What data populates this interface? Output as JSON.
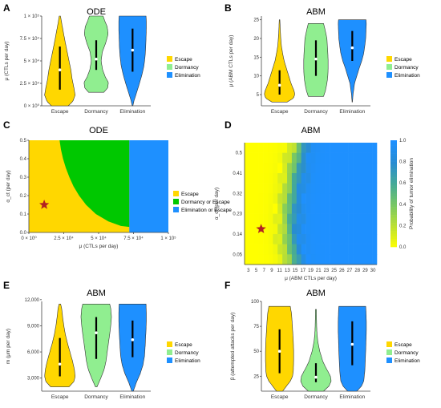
{
  "panel_letters": [
    "A",
    "B",
    "C",
    "D",
    "E",
    "F"
  ],
  "legend_violin": [
    "Escape",
    "Dormancy",
    "Elimination"
  ],
  "colors": {
    "escape": "#FFD700",
    "dormancy": "#90EE90",
    "elimination": "#1E90FF",
    "green_region": "#00C800",
    "star": "#B22222"
  },
  "chart_data": [
    {
      "id": "A",
      "type": "violin",
      "title": "ODE",
      "xlabel": "",
      "ylabel": "μ (CTLs per day)",
      "categories": [
        "Escape",
        "Dormancy",
        "Elimination"
      ],
      "ylim": [
        0,
        100000
      ],
      "yticks": [
        0,
        25000,
        50000,
        75000,
        100000
      ],
      "ytick_labels": [
        "0 × 10⁰",
        "2.5 × 10⁴",
        "5 × 10⁴",
        "7.5 × 10⁴",
        "1 × 10⁵"
      ],
      "series": [
        {
          "category": "Escape",
          "min": 0,
          "max": 100000,
          "q1": 18000,
          "median": 40000,
          "q3": 66000,
          "density": [
            [
              0,
              0.55
            ],
            [
              5000,
              0.85
            ],
            [
              12000,
              1.0
            ],
            [
              20000,
              0.92
            ],
            [
              30000,
              0.8
            ],
            [
              40000,
              0.72
            ],
            [
              50000,
              0.6
            ],
            [
              60000,
              0.48
            ],
            [
              70000,
              0.36
            ],
            [
              80000,
              0.25
            ],
            [
              90000,
              0.14
            ],
            [
              100000,
              0.04
            ]
          ]
        },
        {
          "category": "Dormancy",
          "min": 15000,
          "max": 100000,
          "q1": 40000,
          "median": 52000,
          "q3": 73000,
          "density": [
            [
              15000,
              0.5
            ],
            [
              20000,
              0.75
            ],
            [
              26000,
              0.8
            ],
            [
              32000,
              0.6
            ],
            [
              40000,
              0.42
            ],
            [
              50000,
              0.32
            ],
            [
              60000,
              0.4
            ],
            [
              70000,
              0.62
            ],
            [
              80000,
              0.78
            ],
            [
              88000,
              0.72
            ],
            [
              95000,
              0.55
            ],
            [
              100000,
              0.45
            ]
          ]
        },
        {
          "category": "Elimination",
          "min": 0,
          "max": 100000,
          "q1": 38000,
          "median": 62000,
          "q3": 86000,
          "density": [
            [
              0,
              0.02
            ],
            [
              6000,
              0.1
            ],
            [
              14000,
              0.25
            ],
            [
              25000,
              0.45
            ],
            [
              35000,
              0.62
            ],
            [
              45000,
              0.75
            ],
            [
              55000,
              0.82
            ],
            [
              65000,
              0.86
            ],
            [
              75000,
              0.88
            ],
            [
              85000,
              0.9
            ],
            [
              95000,
              0.9
            ],
            [
              100000,
              0.88
            ]
          ]
        }
      ]
    },
    {
      "id": "B",
      "type": "violin",
      "title": "ABM",
      "xlabel": "",
      "ylabel": "μ (ABM CTLs per day)",
      "categories": [
        "Escape",
        "Dormancy",
        "Elimination"
      ],
      "ylim": [
        2,
        26
      ],
      "yticks": [
        5,
        10,
        15,
        20,
        25
      ],
      "ytick_labels": [
        "5",
        "10",
        "15",
        "20",
        "25"
      ],
      "series": [
        {
          "category": "Escape",
          "min": 3,
          "max": 25,
          "q1": 5,
          "median": 7.5,
          "q3": 11.5,
          "density": [
            [
              3,
              0.5
            ],
            [
              4,
              0.9
            ],
            [
              5,
              1.0
            ],
            [
              6,
              0.95
            ],
            [
              7,
              0.85
            ],
            [
              8,
              0.75
            ],
            [
              10,
              0.6
            ],
            [
              12,
              0.45
            ],
            [
              14,
              0.3
            ],
            [
              16,
              0.2
            ],
            [
              18,
              0.12
            ],
            [
              20,
              0.08
            ],
            [
              22,
              0.05
            ],
            [
              25,
              0.02
            ]
          ]
        },
        {
          "category": "Dormancy",
          "min": 4.5,
          "max": 24,
          "q1": 10,
          "median": 14.5,
          "q3": 19.5,
          "density": [
            [
              4.5,
              0.5
            ],
            [
              6,
              0.62
            ],
            [
              8,
              0.72
            ],
            [
              10,
              0.78
            ],
            [
              12,
              0.8
            ],
            [
              14,
              0.8
            ],
            [
              16,
              0.78
            ],
            [
              18,
              0.75
            ],
            [
              20,
              0.72
            ],
            [
              22,
              0.62
            ],
            [
              24,
              0.5
            ]
          ]
        },
        {
          "category": "Elimination",
          "min": 3,
          "max": 25,
          "q1": 14,
          "median": 17.5,
          "q3": 22,
          "density": [
            [
              3,
              0.01
            ],
            [
              5,
              0.05
            ],
            [
              8,
              0.15
            ],
            [
              10,
              0.3
            ],
            [
              12,
              0.45
            ],
            [
              14,
              0.62
            ],
            [
              16,
              0.75
            ],
            [
              18,
              0.82
            ],
            [
              20,
              0.88
            ],
            [
              22,
              0.9
            ],
            [
              24,
              0.92
            ],
            [
              25,
              0.9
            ]
          ]
        }
      ]
    },
    {
      "id": "C",
      "type": "region",
      "title": "ODE",
      "xlabel": "μ (CTLs per day)",
      "ylabel": "α_ct (per day)",
      "xlim": [
        0,
        100000
      ],
      "ylim": [
        0,
        0.5
      ],
      "xticks": [
        0,
        25000,
        50000,
        75000,
        100000
      ],
      "xtick_labels": [
        "0 × 10⁰",
        "2.5 × 10⁴",
        "5 × 10⁴",
        "7.5 × 10⁴",
        "1 × 10⁵"
      ],
      "yticks": [
        0,
        0.1,
        0.2,
        0.3,
        0.4,
        0.5
      ],
      "ytick_labels": [
        "0.0",
        "0.1",
        "0.2",
        "0.3",
        "0.4",
        "0.5"
      ],
      "legend": [
        "Escape",
        "Dormancy or Escape",
        "Elimination or Escape"
      ],
      "elimination_boundary_x": 72000,
      "boundary": [
        [
          22000,
          0.5
        ],
        [
          23000,
          0.45
        ],
        [
          24500,
          0.4
        ],
        [
          26500,
          0.35
        ],
        [
          29000,
          0.3
        ],
        [
          32000,
          0.25
        ],
        [
          36000,
          0.2
        ],
        [
          41000,
          0.15
        ],
        [
          48000,
          0.1
        ],
        [
          57000,
          0.06
        ],
        [
          66000,
          0.035
        ],
        [
          72000,
          0.03
        ]
      ],
      "star": {
        "x": 11000,
        "y": 0.15
      }
    },
    {
      "id": "D",
      "type": "heatmap",
      "title": "ABM",
      "xlabel": "μ (ABM CTLs per day)",
      "ylabel": "α_ct (per day)",
      "colorbar_label": "Probability of tumor elimination",
      "colorbar_ticks": [
        "0.0",
        "0.2",
        "0.4",
        "0.6",
        "0.8",
        "1.0"
      ],
      "x_categories": [
        "3",
        "5",
        "7",
        "9",
        "11",
        "13",
        "15",
        "17",
        "19",
        "21",
        "23",
        "25",
        "26",
        "27",
        "28",
        "29",
        "30"
      ],
      "y_tick_labels": [
        "0.5",
        "0.41",
        "0.32",
        "0.23",
        "0.14",
        "0.05"
      ],
      "n_cols": 28,
      "n_rows": 12,
      "transition": [
        11.2,
        10.6,
        10.2,
        9.8,
        9.5,
        9.2,
        9.0,
        8.9,
        8.9,
        9.0,
        9.3,
        9.8
      ],
      "star_cell": {
        "col": 3,
        "row": 8
      }
    },
    {
      "id": "E",
      "type": "violin",
      "title": "ABM",
      "xlabel": "",
      "ylabel": "m (μm per day)",
      "categories": [
        "Escape",
        "Dormancy",
        "Elimination"
      ],
      "ylim": [
        1500,
        11800
      ],
      "yticks": [
        3000,
        6000,
        9000,
        12000
      ],
      "ytick_labels": [
        "3,000",
        "6,000",
        "9,000",
        "12,000"
      ],
      "series": [
        {
          "category": "Escape",
          "min": 2000,
          "max": 11500,
          "q1": 3200,
          "median": 4600,
          "q3": 7600,
          "density": [
            [
              2000,
              0.6
            ],
            [
              2600,
              0.92
            ],
            [
              3200,
              1.0
            ],
            [
              4000,
              0.95
            ],
            [
              5000,
              0.82
            ],
            [
              6000,
              0.66
            ],
            [
              7000,
              0.5
            ],
            [
              8000,
              0.36
            ],
            [
              9000,
              0.26
            ],
            [
              10000,
              0.18
            ],
            [
              11000,
              0.12
            ],
            [
              11500,
              0.05
            ]
          ]
        },
        {
          "category": "Dormancy",
          "min": 2000,
          "max": 11500,
          "q1": 5200,
          "median": 8200,
          "q3": 10000,
          "density": [
            [
              2000,
              0.05
            ],
            [
              3000,
              0.3
            ],
            [
              4000,
              0.52
            ],
            [
              5000,
              0.65
            ],
            [
              6000,
              0.72
            ],
            [
              7000,
              0.8
            ],
            [
              8000,
              0.88
            ],
            [
              9000,
              0.95
            ],
            [
              10000,
              1.0
            ],
            [
              11000,
              0.95
            ],
            [
              11500,
              0.88
            ]
          ]
        },
        {
          "category": "Elimination",
          "min": 1500,
          "max": 11500,
          "q1": 5400,
          "median": 7400,
          "q3": 9600,
          "density": [
            [
              1500,
              0.05
            ],
            [
              2500,
              0.25
            ],
            [
              3500,
              0.5
            ],
            [
              4500,
              0.68
            ],
            [
              5500,
              0.78
            ],
            [
              6500,
              0.82
            ],
            [
              7500,
              0.85
            ],
            [
              8500,
              0.88
            ],
            [
              9500,
              0.9
            ],
            [
              10500,
              0.9
            ],
            [
              11500,
              0.88
            ]
          ]
        }
      ]
    },
    {
      "id": "F",
      "type": "violin",
      "title": "ABM",
      "xlabel": "",
      "ylabel": "β (attempted attacks per day)",
      "categories": [
        "Escape",
        "Dormancy",
        "Elimination"
      ],
      "ylim": [
        10,
        100
      ],
      "yticks": [
        25,
        50,
        75,
        100
      ],
      "ytick_labels": [
        "25",
        "50",
        "75",
        "100"
      ],
      "series": [
        {
          "category": "Escape",
          "min": 10,
          "max": 95,
          "q1": 28,
          "median": 50,
          "q3": 72,
          "density": [
            [
              10,
              0.2
            ],
            [
              15,
              0.45
            ],
            [
              20,
              0.7
            ],
            [
              25,
              0.85
            ],
            [
              30,
              0.9
            ],
            [
              40,
              0.92
            ],
            [
              50,
              0.92
            ],
            [
              60,
              0.9
            ],
            [
              70,
              0.86
            ],
            [
              80,
              0.82
            ],
            [
              88,
              0.78
            ],
            [
              95,
              0.7
            ]
          ]
        },
        {
          "category": "Dormancy",
          "min": 10,
          "max": 92,
          "q1": 19,
          "median": 24,
          "q3": 38,
          "density": [
            [
              10,
              0.5
            ],
            [
              15,
              0.85
            ],
            [
              20,
              1.0
            ],
            [
              25,
              0.95
            ],
            [
              30,
              0.78
            ],
            [
              35,
              0.6
            ],
            [
              40,
              0.45
            ],
            [
              50,
              0.25
            ],
            [
              60,
              0.12
            ],
            [
              70,
              0.06
            ],
            [
              80,
              0.04
            ],
            [
              92,
              0.03
            ]
          ]
        },
        {
          "category": "Elimination",
          "min": 10,
          "max": 95,
          "q1": 36,
          "median": 57,
          "q3": 80,
          "density": [
            [
              10,
              0.3
            ],
            [
              15,
              0.6
            ],
            [
              20,
              0.75
            ],
            [
              30,
              0.82
            ],
            [
              40,
              0.85
            ],
            [
              50,
              0.88
            ],
            [
              60,
              0.9
            ],
            [
              70,
              0.92
            ],
            [
              80,
              0.92
            ],
            [
              90,
              0.9
            ],
            [
              95,
              0.88
            ]
          ]
        }
      ]
    }
  ]
}
